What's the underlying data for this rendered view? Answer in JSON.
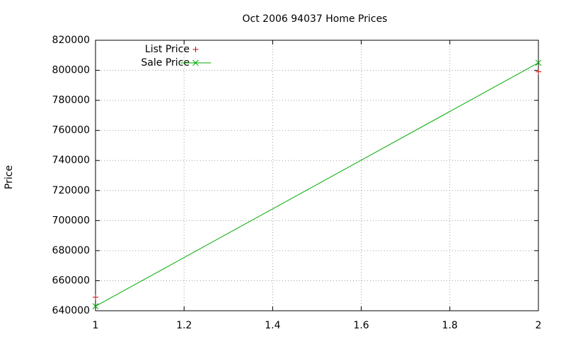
{
  "chart_data": {
    "type": "line",
    "title": "Oct 2006 94037 Home Prices",
    "y_label": "Price",
    "x": [
      1,
      2
    ],
    "series": [
      {
        "name": "List Price",
        "color": "#cc0000",
        "style": "points",
        "marker": "plus",
        "values": [
          649000,
          799000
        ]
      },
      {
        "name": "Sale Price",
        "color": "#00aa00",
        "style": "linespoints",
        "marker": "cross",
        "values": [
          643000,
          805000
        ]
      }
    ],
    "xlim": [
      1,
      2
    ],
    "xticks": [
      1,
      1.2,
      1.4,
      1.6,
      1.8,
      2
    ],
    "ylim": [
      640000,
      820000
    ],
    "yticks": [
      640000,
      660000,
      680000,
      700000,
      720000,
      740000,
      760000,
      780000,
      800000,
      820000
    ],
    "grid": true,
    "legend": "top-left"
  }
}
